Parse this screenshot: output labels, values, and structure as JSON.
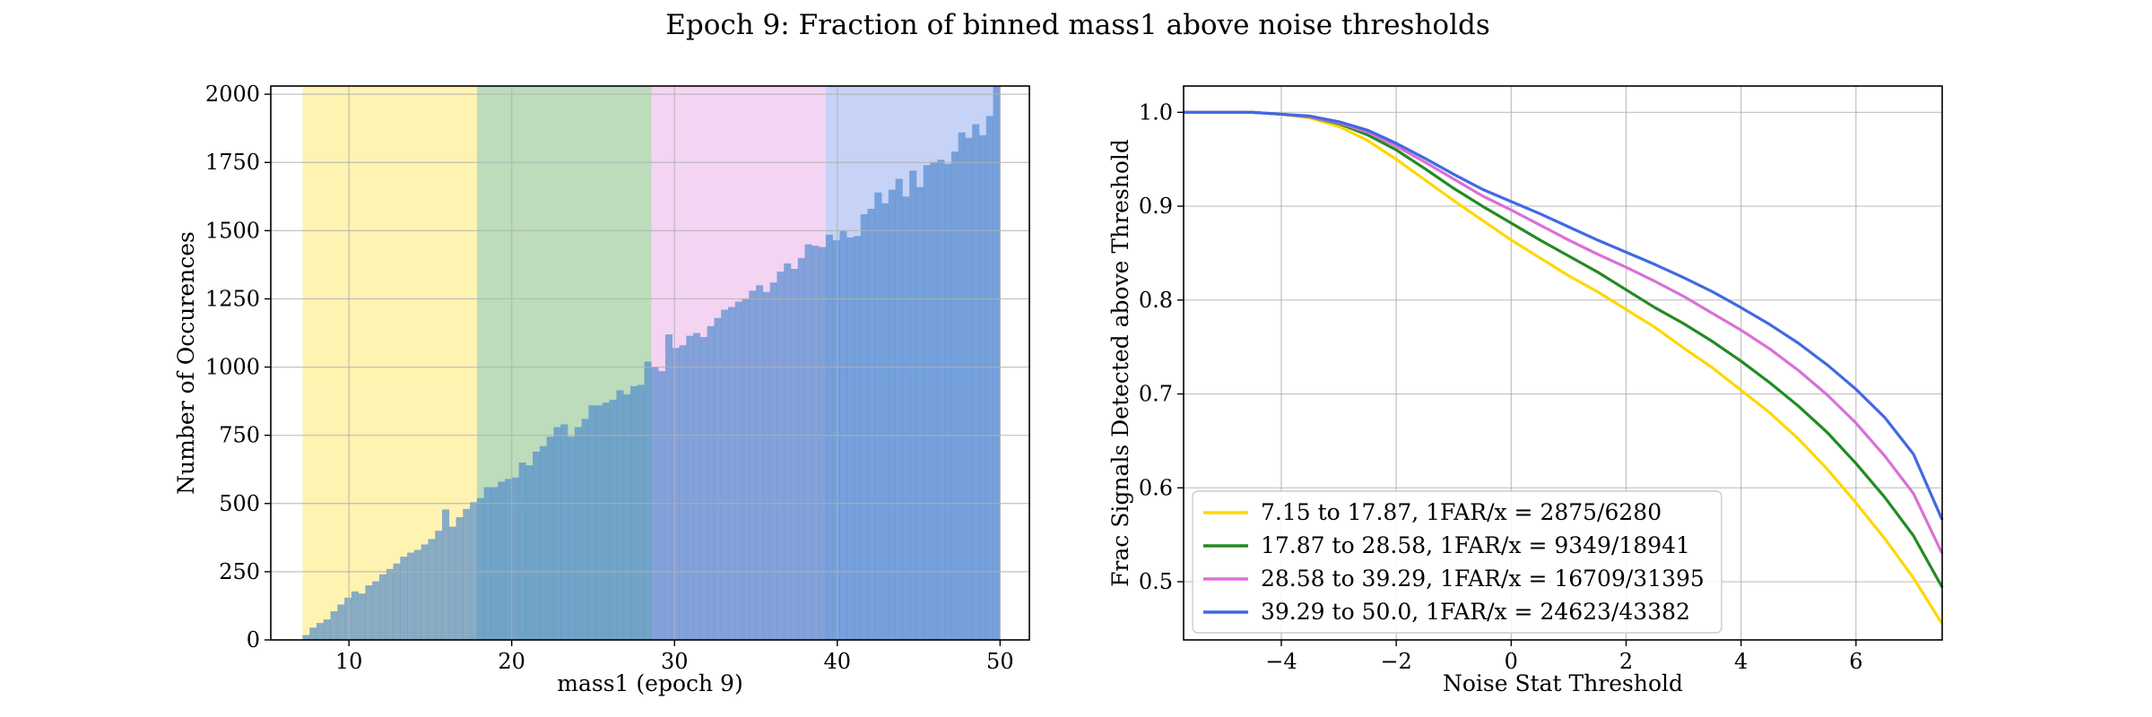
{
  "figure": {
    "title": "Epoch 9: Fraction of binned mass1 above noise thresholds"
  },
  "chart_data": [
    {
      "type": "bar",
      "subtype": "histogram",
      "xlabel": "mass1 (epoch 9)",
      "ylabel": "Number of Occurences",
      "xlim": [
        5.2,
        51.8
      ],
      "ylim": [
        0,
        2030
      ],
      "xticks": [
        10,
        20,
        30,
        40,
        50
      ],
      "yticks": [
        0,
        250,
        500,
        750,
        1000,
        1250,
        1500,
        1750,
        2000
      ],
      "grid": true,
      "bin_edges_range": [
        7.15,
        50.0
      ],
      "bins": 100,
      "counts": [
        18,
        45,
        62,
        75,
        105,
        130,
        155,
        178,
        170,
        200,
        215,
        240,
        260,
        280,
        305,
        320,
        330,
        350,
        370,
        400,
        478,
        415,
        450,
        480,
        505,
        520,
        560,
        560,
        580,
        590,
        595,
        650,
        640,
        690,
        710,
        745,
        780,
        790,
        745,
        780,
        810,
        860,
        860,
        870,
        880,
        915,
        900,
        930,
        935,
        1020,
        1000,
        985,
        1120,
        1070,
        1080,
        1115,
        1125,
        1110,
        1150,
        1180,
        1210,
        1220,
        1240,
        1250,
        1280,
        1300,
        1275,
        1310,
        1350,
        1380,
        1360,
        1400,
        1450,
        1445,
        1440,
        1485,
        1465,
        1500,
        1475,
        1480,
        1560,
        1580,
        1640,
        1600,
        1650,
        1690,
        1625,
        1720,
        1660,
        1740,
        1750,
        1760,
        1745,
        1790,
        1860,
        1840,
        1890,
        1850,
        1920,
        2030
      ],
      "bands": [
        {
          "from": 7.15,
          "to": 17.87,
          "color": "#FFD700"
        },
        {
          "from": 17.87,
          "to": 28.58,
          "color": "#228B22"
        },
        {
          "from": 28.58,
          "to": 39.29,
          "color": "#DA70D6"
        },
        {
          "from": 39.29,
          "to": 50.0,
          "color": "#4169E1"
        }
      ],
      "bar_color": "#4a86cc",
      "colors": {
        "histogram": "#4a86cc"
      }
    },
    {
      "type": "line",
      "xlabel": "Noise Stat Threshold",
      "ylabel": "Frac Signals Detected above Threshold",
      "xlim": [
        -5.7,
        7.5
      ],
      "ylim": [
        0.438,
        1.028
      ],
      "xticks": [
        -4,
        -2,
        0,
        2,
        4,
        6
      ],
      "yticks": [
        0.5,
        0.6,
        0.7,
        0.8,
        0.9,
        1.0
      ],
      "grid": true,
      "legend_position": "lower-left",
      "x": [
        -5.7,
        -5.0,
        -4.5,
        -4.0,
        -3.5,
        -3.0,
        -2.5,
        -2.0,
        -1.5,
        -1.0,
        -0.5,
        0.0,
        0.5,
        1.0,
        1.5,
        2.0,
        2.5,
        3.0,
        3.5,
        4.0,
        4.5,
        5.0,
        5.5,
        6.0,
        6.5,
        7.0,
        7.5
      ],
      "series": [
        {
          "name": "7.15 to 17.87, 1FAR/x = 2875/6280",
          "color": "#FFD700",
          "values": [
            1.0,
            1.0,
            1.0,
            0.998,
            0.994,
            0.985,
            0.97,
            0.95,
            0.928,
            0.906,
            0.885,
            0.864,
            0.845,
            0.826,
            0.809,
            0.79,
            0.771,
            0.749,
            0.728,
            0.704,
            0.68,
            0.652,
            0.62,
            0.584,
            0.546,
            0.504,
            0.455
          ]
        },
        {
          "name": "17.87 to 28.58, 1FAR/x = 9349/18941",
          "color": "#228B22",
          "values": [
            1.0,
            1.0,
            1.0,
            0.998,
            0.995,
            0.988,
            0.976,
            0.96,
            0.94,
            0.919,
            0.9,
            0.882,
            0.864,
            0.847,
            0.83,
            0.811,
            0.792,
            0.775,
            0.756,
            0.735,
            0.712,
            0.687,
            0.659,
            0.626,
            0.59,
            0.549,
            0.494
          ]
        },
        {
          "name": "28.58 to 39.29, 1FAR/x = 16709/31395",
          "color": "#DA70D6",
          "values": [
            1.0,
            1.0,
            1.0,
            0.998,
            0.995,
            0.989,
            0.979,
            0.964,
            0.947,
            0.929,
            0.911,
            0.896,
            0.88,
            0.864,
            0.849,
            0.835,
            0.82,
            0.804,
            0.786,
            0.768,
            0.748,
            0.725,
            0.699,
            0.669,
            0.634,
            0.594,
            0.53
          ]
        },
        {
          "name": "39.29 to 50.0, 1FAR/x = 24623/43382",
          "color": "#4169E1",
          "values": [
            1.0,
            1.0,
            1.0,
            0.998,
            0.996,
            0.99,
            0.981,
            0.967,
            0.951,
            0.934,
            0.918,
            0.905,
            0.892,
            0.878,
            0.864,
            0.851,
            0.838,
            0.824,
            0.809,
            0.792,
            0.774,
            0.754,
            0.731,
            0.705,
            0.675,
            0.636,
            0.566
          ]
        }
      ]
    }
  ]
}
